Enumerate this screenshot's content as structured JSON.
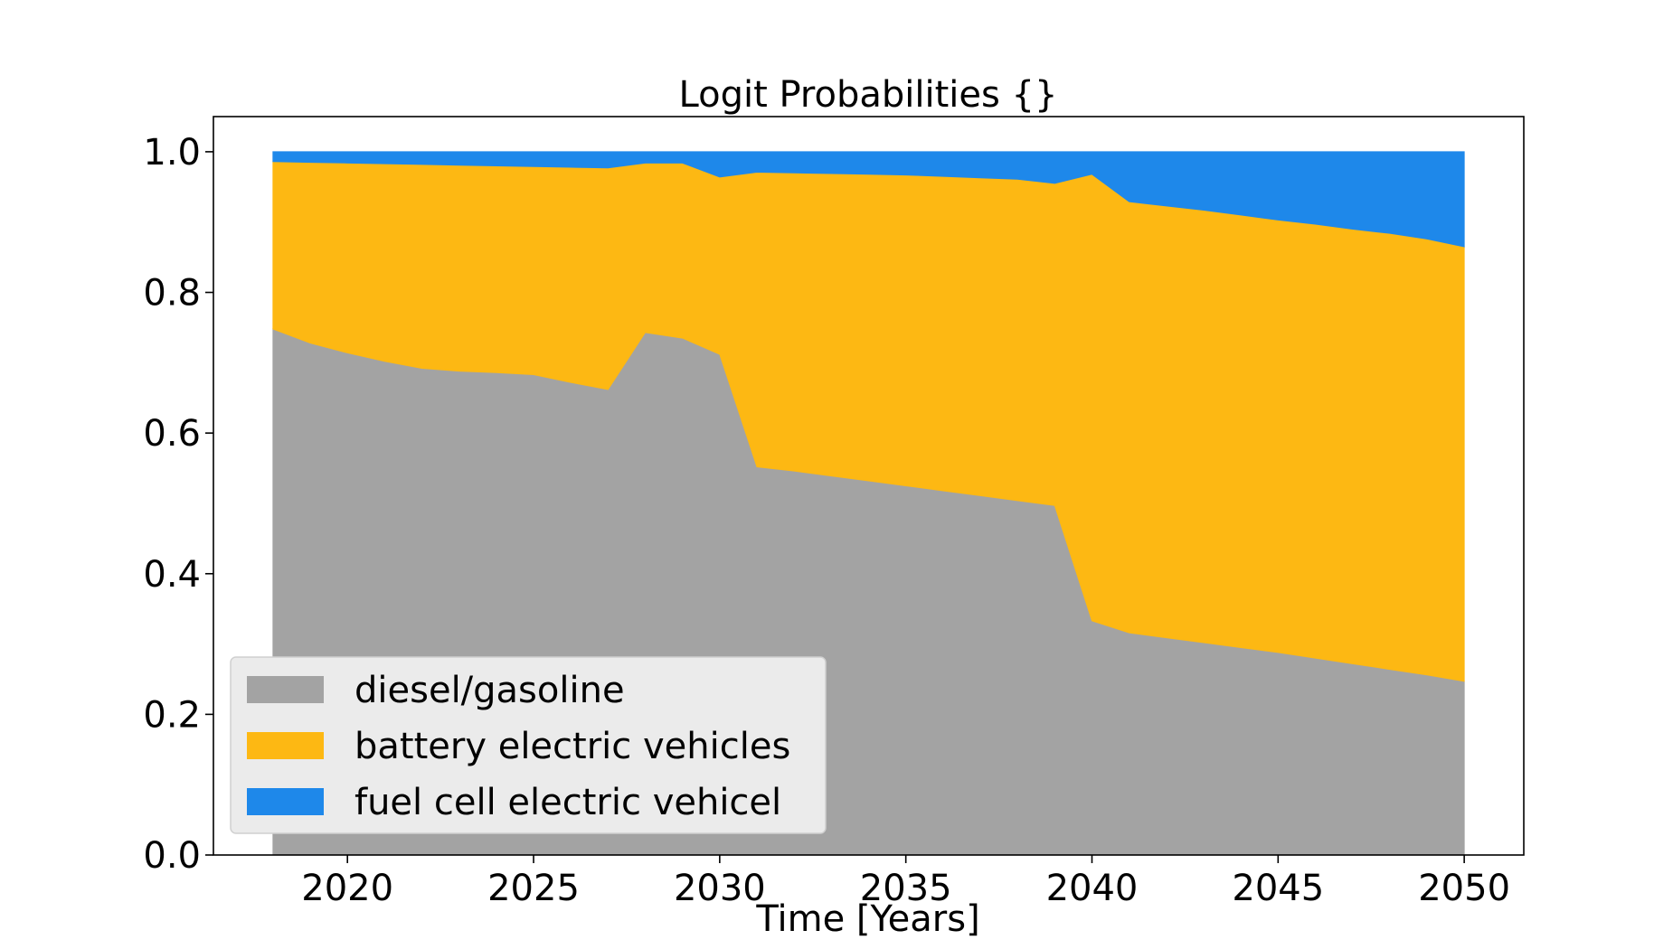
{
  "chart_data": {
    "type": "area",
    "stacked": true,
    "title": "Logit Probabilities {}",
    "xlabel": "Time [Years]",
    "ylabel": "",
    "xlim": [
      2016.4,
      2051.6
    ],
    "ylim": [
      0,
      1.05
    ],
    "xticks": [
      2020,
      2025,
      2030,
      2035,
      2040,
      2045,
      2050
    ],
    "yticks": [
      0.0,
      0.2,
      0.4,
      0.6,
      0.8,
      1.0
    ],
    "xtick_labels": [
      "2020",
      "2025",
      "2030",
      "2035",
      "2040",
      "2045",
      "2050"
    ],
    "ytick_labels": [
      "0.0",
      "0.2",
      "0.4",
      "0.6",
      "0.8",
      "1.0"
    ],
    "grid": false,
    "legend_position": "bottom-left",
    "x": [
      2018,
      2019,
      2020,
      2021,
      2022,
      2023,
      2024,
      2025,
      2026,
      2027,
      2028,
      2029,
      2030,
      2031,
      2032,
      2033,
      2034,
      2035,
      2036,
      2037,
      2038,
      2039,
      2040,
      2041,
      2042,
      2043,
      2044,
      2045,
      2046,
      2047,
      2048,
      2049,
      2050
    ],
    "series": [
      {
        "name": "diesel/gasoline",
        "color": "#a3a3a3",
        "values": [
          0.748,
          0.728,
          0.714,
          0.702,
          0.692,
          0.688,
          0.686,
          0.683,
          0.672,
          0.662,
          0.743,
          0.735,
          0.712,
          0.552,
          0.546,
          0.539,
          0.532,
          0.525,
          0.518,
          0.511,
          0.504,
          0.497,
          0.333,
          0.316,
          0.309,
          0.302,
          0.295,
          0.288,
          0.28,
          0.272,
          0.264,
          0.256,
          0.247
        ]
      },
      {
        "name": "battery electric vehicles",
        "color": "#fdb813",
        "values": [
          0.238,
          0.257,
          0.27,
          0.281,
          0.29,
          0.293,
          0.294,
          0.296,
          0.306,
          0.315,
          0.241,
          0.249,
          0.252,
          0.419,
          0.424,
          0.43,
          0.436,
          0.442,
          0.447,
          0.452,
          0.457,
          0.458,
          0.635,
          0.613,
          0.614,
          0.615,
          0.615,
          0.615,
          0.617,
          0.618,
          0.62,
          0.62,
          0.618
        ]
      },
      {
        "name": "fuel cell electric vehicel",
        "color": "#1e88ea",
        "values": [
          0.014,
          0.015,
          0.016,
          0.017,
          0.018,
          0.019,
          0.02,
          0.021,
          0.022,
          0.023,
          0.016,
          0.016,
          0.036,
          0.029,
          0.03,
          0.031,
          0.032,
          0.033,
          0.035,
          0.037,
          0.039,
          0.045,
          0.032,
          0.071,
          0.077,
          0.083,
          0.09,
          0.097,
          0.103,
          0.11,
          0.116,
          0.124,
          0.135
        ]
      }
    ]
  }
}
